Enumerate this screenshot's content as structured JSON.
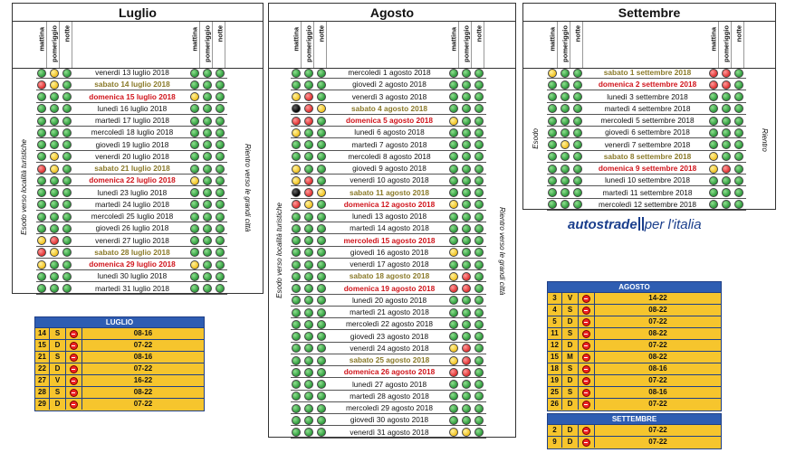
{
  "headers": {
    "mattina": "mattina",
    "pomeriggio": "pomeriggio",
    "notte": "notte"
  },
  "labels": {
    "esodo_long": "Esodo verso località turistiche",
    "rientro_long": "Rientro verso le grandi città",
    "esodo": "Esodo",
    "rientro": "Rientro"
  },
  "logo": {
    "brand": "autostrade",
    "rest": "per l'italia"
  },
  "luglio": {
    "title": "Luglio",
    "rows": [
      {
        "d": "venerdì 13 luglio 2018",
        "t": "n",
        "e": "gyg",
        "r": "ggg"
      },
      {
        "d": "sabato 14 luglio 2018",
        "t": "s",
        "e": "ryg",
        "r": "ggg"
      },
      {
        "d": "domenica 15 luglio 2018",
        "t": "u",
        "e": "ggg",
        "r": "ygg"
      },
      {
        "d": "lunedì 16 luglio 2018",
        "t": "n",
        "e": "ggg",
        "r": "ggg"
      },
      {
        "d": "martedì 17 luglio 2018",
        "t": "n",
        "e": "ggg",
        "r": "ggg"
      },
      {
        "d": "mercoledì 18 luglio 2018",
        "t": "n",
        "e": "ggg",
        "r": "ggg"
      },
      {
        "d": "giovedì 19 luglio 2018",
        "t": "n",
        "e": "ggg",
        "r": "ggg"
      },
      {
        "d": "venerdì 20 luglio 2018",
        "t": "n",
        "e": "gyg",
        "r": "ggg"
      },
      {
        "d": "sabato 21 luglio 2018",
        "t": "s",
        "e": "ryg",
        "r": "ggg"
      },
      {
        "d": "domenica 22 luglio 2018",
        "t": "u",
        "e": "ggg",
        "r": "ygg"
      },
      {
        "d": "lunedì 23 luglio 2018",
        "t": "n",
        "e": "ggg",
        "r": "ggg"
      },
      {
        "d": "martedì 24 luglio 2018",
        "t": "n",
        "e": "ggg",
        "r": "ggg"
      },
      {
        "d": "mercoledì 25 luglio 2018",
        "t": "n",
        "e": "ggg",
        "r": "ggg"
      },
      {
        "d": "giovedì 26 luglio 2018",
        "t": "n",
        "e": "ggg",
        "r": "ggg"
      },
      {
        "d": "venerdì 27 luglio 2018",
        "t": "n",
        "e": "yrg",
        "r": "ggg"
      },
      {
        "d": "sabato 28 luglio 2018",
        "t": "s",
        "e": "ryg",
        "r": "ggg"
      },
      {
        "d": "domenica 29 luglio 2018",
        "t": "u",
        "e": "ygg",
        "r": "ygg"
      },
      {
        "d": "lunedì 30 luglio 2018",
        "t": "n",
        "e": "ggg",
        "r": "ggg"
      },
      {
        "d": "martedì 31 luglio 2018",
        "t": "n",
        "e": "ggg",
        "r": "ggg"
      }
    ]
  },
  "agosto": {
    "title": "Agosto",
    "rows": [
      {
        "d": "mercoledì 1 agosto 2018",
        "t": "n",
        "e": "ggg",
        "r": "ggg"
      },
      {
        "d": "giovedì 2 agosto 2018",
        "t": "n",
        "e": "ggg",
        "r": "ggg"
      },
      {
        "d": "venerdì 3 agosto 2018",
        "t": "n",
        "e": "yrg",
        "r": "ggg"
      },
      {
        "d": "sabato 4 agosto 2018",
        "t": "s",
        "e": "bry",
        "r": "ggg"
      },
      {
        "d": "domenica 5 agosto 2018",
        "t": "u",
        "e": "rrg",
        "r": "ygg"
      },
      {
        "d": "lunedì 6 agosto 2018",
        "t": "n",
        "e": "ygg",
        "r": "ggg"
      },
      {
        "d": "martedì 7 agosto 2018",
        "t": "n",
        "e": "ggg",
        "r": "ggg"
      },
      {
        "d": "mercoledì 8 agosto 2018",
        "t": "n",
        "e": "ggg",
        "r": "ggg"
      },
      {
        "d": "giovedì 9 agosto 2018",
        "t": "n",
        "e": "ygg",
        "r": "ggg"
      },
      {
        "d": "venerdì 10 agosto 2018",
        "t": "n",
        "e": "yrg",
        "r": "ggg"
      },
      {
        "d": "sabato 11 agosto 2018",
        "t": "s",
        "e": "bry",
        "r": "ggg"
      },
      {
        "d": "domenica 12 agosto 2018",
        "t": "u",
        "e": "ryg",
        "r": "ygg"
      },
      {
        "d": "lunedì 13 agosto 2018",
        "t": "n",
        "e": "ggg",
        "r": "ggg"
      },
      {
        "d": "martedì 14 agosto 2018",
        "t": "n",
        "e": "ggg",
        "r": "ggg"
      },
      {
        "d": "mercoledì 15 agosto 2018",
        "t": "u",
        "e": "ggg",
        "r": "ggg"
      },
      {
        "d": "giovedì 16 agosto 2018",
        "t": "n",
        "e": "ggg",
        "r": "ygg"
      },
      {
        "d": "venerdì 17 agosto 2018",
        "t": "n",
        "e": "ggg",
        "r": "ggg"
      },
      {
        "d": "sabato 18 agosto 2018",
        "t": "s",
        "e": "ggg",
        "r": "yrg"
      },
      {
        "d": "domenica 19 agosto 2018",
        "t": "u",
        "e": "ggg",
        "r": "rrg"
      },
      {
        "d": "lunedì 20 agosto 2018",
        "t": "n",
        "e": "ggg",
        "r": "ggg"
      },
      {
        "d": "martedì 21 agosto 2018",
        "t": "n",
        "e": "ggg",
        "r": "ggg"
      },
      {
        "d": "mercoledì 22 agosto 2018",
        "t": "n",
        "e": "ggg",
        "r": "ggg"
      },
      {
        "d": "giovedì 23 agosto 2018",
        "t": "n",
        "e": "ggg",
        "r": "ggg"
      },
      {
        "d": "venerdì 24 agosto 2018",
        "t": "n",
        "e": "ggg",
        "r": "yrg"
      },
      {
        "d": "sabato 25 agosto 2018",
        "t": "s",
        "e": "ggg",
        "r": "yrg"
      },
      {
        "d": "domenica 26 agosto 2018",
        "t": "u",
        "e": "ggg",
        "r": "rrg"
      },
      {
        "d": "lunedì 27 agosto 2018",
        "t": "n",
        "e": "ggg",
        "r": "ggg"
      },
      {
        "d": "martedì 28 agosto 2018",
        "t": "n",
        "e": "ggg",
        "r": "ggg"
      },
      {
        "d": "mercoledì 29 agosto 2018",
        "t": "n",
        "e": "ggg",
        "r": "ggg"
      },
      {
        "d": "giovedì 30 agosto 2018",
        "t": "n",
        "e": "ggg",
        "r": "ggg"
      },
      {
        "d": "venerdì 31 agosto 2018",
        "t": "n",
        "e": "ggg",
        "r": "yyg"
      }
    ]
  },
  "settembre": {
    "title": "Settembre",
    "rows": [
      {
        "d": "sabato 1 settembre 2018",
        "t": "s",
        "e": "ygg",
        "r": "rrg"
      },
      {
        "d": "domenica 2 settembre 2018",
        "t": "u",
        "e": "ggg",
        "r": "rrg"
      },
      {
        "d": "lunedì 3 settembre 2018",
        "t": "n",
        "e": "ggg",
        "r": "ggg"
      },
      {
        "d": "martedì 4 settembre 2018",
        "t": "n",
        "e": "ggg",
        "r": "ggg"
      },
      {
        "d": "mercoledì 5 settembre 2018",
        "t": "n",
        "e": "ggg",
        "r": "ggg"
      },
      {
        "d": "giovedì 6 settembre 2018",
        "t": "n",
        "e": "ggg",
        "r": "ggg"
      },
      {
        "d": "venerdì 7 settembre 2018",
        "t": "n",
        "e": "gyg",
        "r": "ggg"
      },
      {
        "d": "sabato 8 settembre 2018",
        "t": "s",
        "e": "ggg",
        "r": "ygg"
      },
      {
        "d": "domenica 9 settembre 2018",
        "t": "u",
        "e": "ggg",
        "r": "yrg"
      },
      {
        "d": "lunedì 10 settembre 2018",
        "t": "n",
        "e": "ggg",
        "r": "ggg"
      },
      {
        "d": "martedì 11 settembre 2018",
        "t": "n",
        "e": "ggg",
        "r": "ggg"
      },
      {
        "d": "mercoledì 12 settembre 2018",
        "t": "n",
        "e": "ggg",
        "r": "ggg"
      }
    ]
  },
  "tables": {
    "luglio": {
      "title": "LUGLIO",
      "rows": [
        {
          "n": "14",
          "w": "S",
          "h": "08-16"
        },
        {
          "n": "15",
          "w": "D",
          "h": "07-22"
        },
        {
          "n": "21",
          "w": "S",
          "h": "08-16"
        },
        {
          "n": "22",
          "w": "D",
          "h": "07-22"
        },
        {
          "n": "27",
          "w": "V",
          "h": "16-22"
        },
        {
          "n": "28",
          "w": "S",
          "h": "08-22"
        },
        {
          "n": "29",
          "w": "D",
          "h": "07-22"
        }
      ]
    },
    "agosto": {
      "title": "AGOSTO",
      "rows": [
        {
          "n": "3",
          "w": "V",
          "h": "14-22"
        },
        {
          "n": "4",
          "w": "S",
          "h": "08-22"
        },
        {
          "n": "5",
          "w": "D",
          "h": "07-22"
        },
        {
          "n": "11",
          "w": "S",
          "h": "08-22"
        },
        {
          "n": "12",
          "w": "D",
          "h": "07-22"
        },
        {
          "n": "15",
          "w": "M",
          "h": "08-22"
        },
        {
          "n": "18",
          "w": "S",
          "h": "08-16"
        },
        {
          "n": "19",
          "w": "D",
          "h": "07-22"
        },
        {
          "n": "25",
          "w": "S",
          "h": "08-16"
        },
        {
          "n": "26",
          "w": "D",
          "h": "07-22"
        }
      ]
    },
    "settembre": {
      "title": "SETTEMBRE",
      "rows": [
        {
          "n": "2",
          "w": "D",
          "h": "07-22"
        },
        {
          "n": "9",
          "w": "D",
          "h": "07-22"
        }
      ]
    }
  }
}
